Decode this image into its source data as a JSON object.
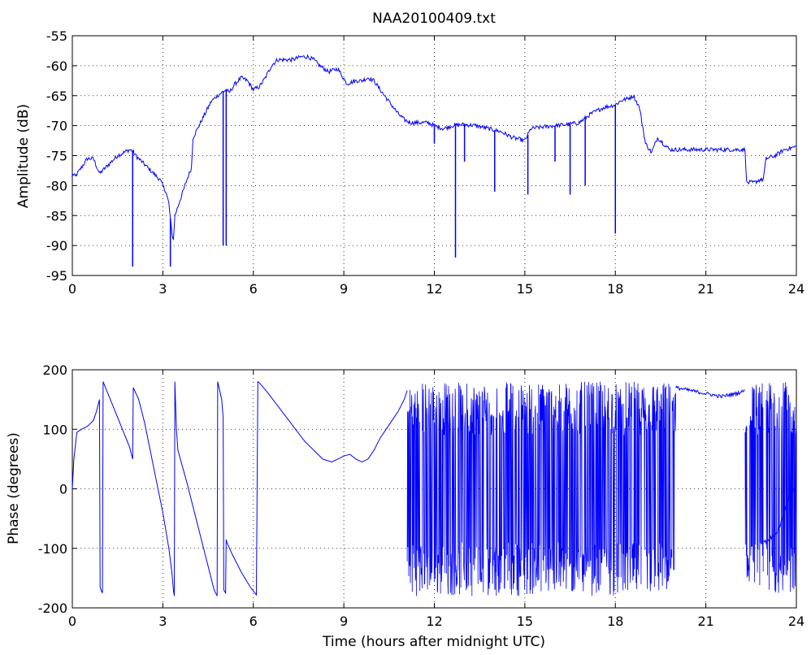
{
  "chart_data": [
    {
      "type": "line",
      "title": "NAA20100409.txt",
      "xlabel": "",
      "ylabel": "Amplitude (dB)",
      "xlim": [
        0,
        24
      ],
      "ylim": [
        -95,
        -55
      ],
      "xticks": [
        0,
        3,
        6,
        9,
        12,
        15,
        18,
        21,
        24
      ],
      "yticks": [
        -55,
        -60,
        -65,
        -70,
        -75,
        -80,
        -85,
        -90,
        -95
      ],
      "grid": true,
      "color": "#0000ff",
      "series": [
        {
          "x": [
            0,
            0.1,
            0.3,
            0.5,
            0.7,
            0.9,
            1.1,
            1.3,
            1.5,
            1.7,
            1.9,
            2.0,
            2.1,
            2.3,
            2.5,
            2.7,
            2.9,
            3.1,
            3.2,
            3.3,
            3.35,
            3.4,
            3.6,
            3.8,
            3.95,
            4.0,
            4.2,
            4.4,
            4.6,
            4.8,
            4.95,
            5.1,
            5.2,
            5.4,
            5.6,
            5.8,
            6.0,
            6.2,
            6.4,
            6.6,
            6.8,
            7.0,
            7.3,
            7.6,
            7.8,
            8.0,
            8.2,
            8.5,
            8.8,
            9.1,
            9.4,
            9.6,
            9.8,
            10.0,
            10.2,
            10.5,
            10.8,
            11.0,
            11.2,
            11.5,
            11.8,
            12.0,
            12.3,
            12.6,
            13.0,
            13.4,
            13.8,
            14.2,
            14.6,
            15.0,
            15.2,
            15.6,
            16.0,
            16.4,
            16.8,
            17.2,
            17.6,
            18.0,
            18.2,
            18.4,
            18.6,
            18.8,
            19.0,
            19.2,
            19.4,
            19.6,
            19.8,
            20.0,
            20.4,
            20.8,
            21.2,
            21.6,
            22.0,
            22.3,
            22.35,
            22.6,
            22.8,
            22.9,
            23.0,
            23.3,
            23.6,
            24.0
          ],
          "y": [
            -78,
            -78.5,
            -77,
            -75.5,
            -75.5,
            -78,
            -77,
            -76,
            -75,
            -74.5,
            -74,
            -74.2,
            -75,
            -76,
            -77,
            -78,
            -79,
            -81,
            -83,
            -88,
            -89,
            -85,
            -82,
            -79,
            -77,
            -72,
            -70,
            -68,
            -66,
            -65,
            -64.5,
            -64,
            -64.5,
            -63,
            -62,
            -62.5,
            -64,
            -63.5,
            -62,
            -60,
            -59,
            -59,
            -59,
            -58.5,
            -58.5,
            -59,
            -60,
            -61,
            -60.5,
            -63,
            -62.5,
            -62.5,
            -62,
            -62.5,
            -64,
            -66,
            -68,
            -69,
            -69.5,
            -69.5,
            -69.5,
            -70,
            -70.5,
            -70,
            -69.8,
            -70,
            -70.5,
            -71,
            -72,
            -72.5,
            -70.5,
            -70.2,
            -70,
            -69.8,
            -69.5,
            -68,
            -67,
            -66.5,
            -65.8,
            -65.5,
            -65,
            -67,
            -73,
            -74.5,
            -72,
            -73,
            -74,
            -74,
            -74,
            -74,
            -74,
            -74,
            -74,
            -74,
            -79.5,
            -79.5,
            -79,
            -79,
            -75.5,
            -75,
            -74,
            -73.5
          ]
        }
      ],
      "spikes": [
        {
          "x": 2.0,
          "y": -93.5
        },
        {
          "x": 3.25,
          "y": -93.5
        },
        {
          "x": 5.0,
          "y": -90
        },
        {
          "x": 5.1,
          "y": -90
        },
        {
          "x": 12.0,
          "y": -73
        },
        {
          "x": 12.7,
          "y": -92
        },
        {
          "x": 13.0,
          "y": -76
        },
        {
          "x": 14.0,
          "y": -81
        },
        {
          "x": 15.1,
          "y": -81.5
        },
        {
          "x": 16.0,
          "y": -76
        },
        {
          "x": 16.5,
          "y": -81.5
        },
        {
          "x": 17.0,
          "y": -80
        },
        {
          "x": 18.0,
          "y": -88
        }
      ]
    },
    {
      "type": "line",
      "title": "",
      "xlabel": "Time (hours after midnight UTC)",
      "ylabel": "Phase (degrees)",
      "xlim": [
        0,
        24
      ],
      "ylim": [
        -200,
        200
      ],
      "xticks": [
        0,
        3,
        6,
        9,
        12,
        15,
        18,
        21,
        24
      ],
      "yticks": [
        200,
        100,
        0,
        -100,
        -200
      ],
      "grid": true,
      "color": "#0000ff",
      "series": [
        {
          "x": [
            0.0,
            0.05,
            0.15,
            0.3,
            0.5,
            0.7,
            0.8,
            0.9,
            0.92,
            0.95,
            1.0,
            1.02,
            1.1,
            1.3,
            1.5,
            1.7,
            1.9,
            2.0,
            2.02,
            2.2,
            2.4,
            2.6,
            2.8,
            3.0,
            3.2,
            3.3,
            3.35,
            3.38,
            3.4,
            3.45,
            3.5,
            3.8,
            4.1,
            4.4,
            4.7,
            4.8,
            4.82,
            4.95,
            5.0,
            5.02,
            5.08,
            5.1,
            5.12,
            5.3,
            5.6,
            5.9,
            6.1,
            6.15,
            6.2,
            6.5,
            6.8,
            7.1,
            7.4,
            7.7,
            8.0,
            8.3,
            8.6,
            8.8,
            9.0,
            9.2,
            9.4,
            9.6,
            9.8,
            10.0,
            10.2,
            10.4,
            10.6,
            10.8,
            11.0,
            11.1
          ],
          "y": [
            0,
            50,
            95,
            100,
            105,
            115,
            130,
            150,
            -165,
            -170,
            -175,
            180,
            170,
            145,
            120,
            95,
            70,
            50,
            170,
            150,
            110,
            60,
            10,
            -40,
            -100,
            -140,
            -170,
            -180,
            180,
            100,
            65,
            10,
            -50,
            -110,
            -170,
            -180,
            180,
            150,
            120,
            -170,
            -175,
            -85,
            -90,
            -110,
            -140,
            -165,
            -178,
            180,
            178,
            160,
            140,
            120,
            100,
            80,
            65,
            50,
            45,
            50,
            55,
            58,
            50,
            45,
            50,
            65,
            85,
            100,
            115,
            130,
            150,
            165
          ]
        }
      ],
      "noise_bands": [
        {
          "x_start": 11.1,
          "x_end": 20.0,
          "y_low": -180,
          "y_high": 180
        },
        {
          "x_start": 22.3,
          "x_end": 22.9,
          "y_low": -180,
          "y_high": 180
        },
        {
          "x_start": 23.0,
          "x_end": 24.0,
          "y_low": -180,
          "y_high": 180
        }
      ],
      "overlay_segments": [
        {
          "x": [
            20.0,
            20.5,
            21.0,
            21.5,
            22.0,
            22.3
          ],
          "y": [
            170,
            165,
            160,
            155,
            160,
            165
          ]
        },
        {
          "x": [
            22.9,
            23.0,
            23.2,
            23.4,
            23.6,
            23.8,
            24.0
          ],
          "y": [
            -85,
            -90,
            -80,
            -70,
            -40,
            0,
            -10
          ]
        }
      ]
    }
  ]
}
